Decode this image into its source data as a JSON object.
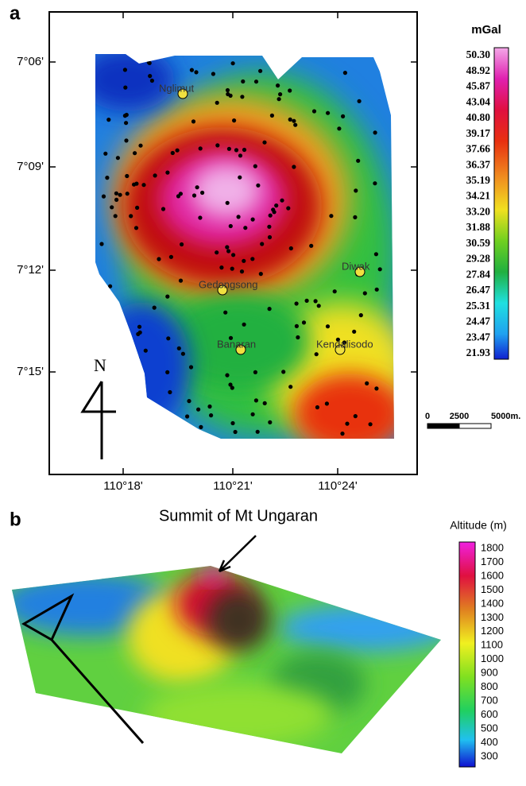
{
  "panel_a": {
    "label": "a",
    "unit": "mGal",
    "colorbar_labels": [
      "50.30",
      "48.92",
      "45.87",
      "43.04",
      "40.80",
      "39.17",
      "37.66",
      "36.37",
      "35.19",
      "34.21",
      "33.20",
      "31.88",
      "30.59",
      "29.28",
      "27.84",
      "26.47",
      "25.31",
      "24.47",
      "23.47",
      "21.93"
    ],
    "latitude_labels": [
      "7°06'",
      "7°09'",
      "7°12'",
      "7°15'"
    ],
    "longitude_labels": [
      "110°18'",
      "110°21'",
      "110°24'"
    ],
    "places": [
      "Nglimut",
      "Diwak",
      "Gedongsong",
      "Banaran",
      "Kendalisodo"
    ],
    "north": "N",
    "scale_labels": [
      "0",
      "2500",
      "5000m."
    ]
  },
  "panel_b": {
    "label": "b",
    "annotation": "Summit of Mt Ungaran",
    "unit": "Altitude (m)",
    "colorbar_labels": [
      "1800",
      "1700",
      "1600",
      "1500",
      "1400",
      "1300",
      "1200",
      "1100",
      "1000",
      "900",
      "800",
      "700",
      "600",
      "500",
      "400",
      "300"
    ]
  }
}
